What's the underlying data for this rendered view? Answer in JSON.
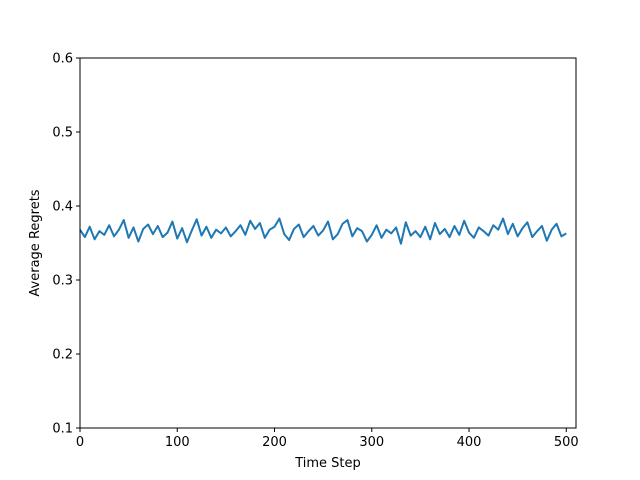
{
  "chart_data": {
    "type": "line",
    "title": "",
    "xlabel": "Time Step",
    "ylabel": "Average Regrets",
    "xlim": [
      0,
      510
    ],
    "ylim": [
      0.1,
      0.6
    ],
    "x_ticks": [
      0,
      100,
      200,
      300,
      400,
      500
    ],
    "x_tick_labels": [
      "0",
      "100",
      "200",
      "300",
      "400",
      "500"
    ],
    "y_ticks": [
      0.1,
      0.2,
      0.3,
      0.4,
      0.5,
      0.6
    ],
    "y_tick_labels": [
      "0.1",
      "0.2",
      "0.3",
      "0.4",
      "0.5",
      "0.6"
    ],
    "grid": false,
    "legend": "none",
    "series": [
      {
        "color": "#1f77b4",
        "x": [
          0,
          5,
          10,
          15,
          20,
          25,
          30,
          35,
          40,
          45,
          50,
          55,
          60,
          65,
          70,
          75,
          80,
          85,
          90,
          95,
          100,
          105,
          110,
          115,
          120,
          125,
          130,
          135,
          140,
          145,
          150,
          155,
          160,
          165,
          170,
          175,
          180,
          185,
          190,
          195,
          200,
          205,
          210,
          215,
          220,
          225,
          230,
          235,
          240,
          245,
          250,
          255,
          260,
          265,
          270,
          275,
          280,
          285,
          290,
          295,
          300,
          305,
          310,
          315,
          320,
          325,
          330,
          335,
          340,
          345,
          350,
          355,
          360,
          365,
          370,
          375,
          380,
          385,
          390,
          395,
          400,
          405,
          410,
          415,
          420,
          425,
          430,
          435,
          440,
          445,
          450,
          455,
          460,
          465,
          470,
          475,
          480,
          485,
          490,
          495,
          500
        ],
        "y": [
          0.368,
          0.358,
          0.372,
          0.355,
          0.366,
          0.361,
          0.374,
          0.359,
          0.368,
          0.381,
          0.357,
          0.371,
          0.352,
          0.369,
          0.375,
          0.362,
          0.373,
          0.358,
          0.364,
          0.379,
          0.356,
          0.37,
          0.351,
          0.367,
          0.382,
          0.36,
          0.372,
          0.357,
          0.368,
          0.363,
          0.371,
          0.359,
          0.366,
          0.374,
          0.361,
          0.38,
          0.369,
          0.377,
          0.357,
          0.368,
          0.372,
          0.383,
          0.362,
          0.354,
          0.369,
          0.375,
          0.358,
          0.366,
          0.373,
          0.36,
          0.367,
          0.379,
          0.355,
          0.362,
          0.376,
          0.381,
          0.359,
          0.37,
          0.366,
          0.352,
          0.361,
          0.374,
          0.357,
          0.368,
          0.363,
          0.371,
          0.349,
          0.378,
          0.36,
          0.366,
          0.358,
          0.372,
          0.355,
          0.377,
          0.362,
          0.369,
          0.358,
          0.373,
          0.361,
          0.38,
          0.364,
          0.357,
          0.371,
          0.366,
          0.36,
          0.374,
          0.368,
          0.383,
          0.362,
          0.376,
          0.359,
          0.37,
          0.378,
          0.358,
          0.366,
          0.373,
          0.353,
          0.368,
          0.376,
          0.359,
          0.363
        ]
      }
    ]
  }
}
